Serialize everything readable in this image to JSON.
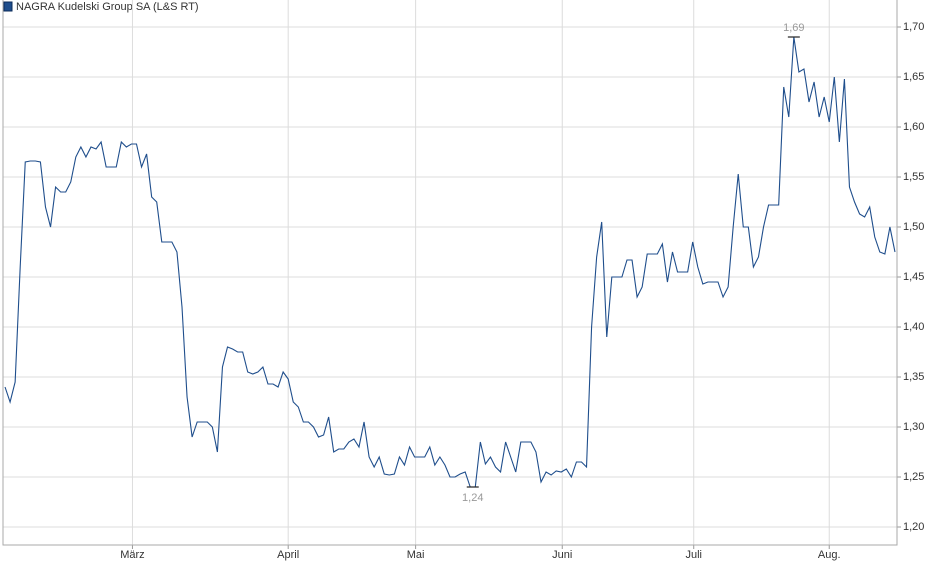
{
  "chart_data": {
    "type": "line",
    "title": "NAGRA Kudelski Group SA (L&S RT)",
    "series": [
      {
        "name": "NAGRA Kudelski Group SA (L&S RT)",
        "color": "#1f4e8c",
        "values": [
          1.34,
          1.325,
          1.345,
          1.46,
          1.565,
          1.566,
          1.566,
          1.565,
          1.52,
          1.5,
          1.54,
          1.535,
          1.535,
          1.545,
          1.57,
          1.58,
          1.57,
          1.58,
          1.578,
          1.585,
          1.56,
          1.56,
          1.56,
          1.585,
          1.58,
          1.583,
          1.583,
          1.56,
          1.573,
          1.53,
          1.525,
          1.485,
          1.485,
          1.485,
          1.475,
          1.42,
          1.33,
          1.29,
          1.305,
          1.305,
          1.305,
          1.3,
          1.275,
          1.36,
          1.38,
          1.378,
          1.375,
          1.375,
          1.355,
          1.353,
          1.355,
          1.36,
          1.343,
          1.343,
          1.34,
          1.355,
          1.348,
          1.325,
          1.32,
          1.305,
          1.305,
          1.3,
          1.29,
          1.292,
          1.31,
          1.275,
          1.278,
          1.278,
          1.285,
          1.288,
          1.28,
          1.305,
          1.27,
          1.26,
          1.27,
          1.253,
          1.252,
          1.253,
          1.27,
          1.262,
          1.28,
          1.27,
          1.27,
          1.27,
          1.28,
          1.262,
          1.27,
          1.262,
          1.25,
          1.25,
          1.253,
          1.255,
          1.24,
          1.24,
          1.285,
          1.263,
          1.27,
          1.26,
          1.255,
          1.285,
          1.27,
          1.255,
          1.285,
          1.285,
          1.285,
          1.275,
          1.245,
          1.255,
          1.252,
          1.256,
          1.255,
          1.258,
          1.25,
          1.265,
          1.265,
          1.26,
          1.4,
          1.47,
          1.505,
          1.39,
          1.45,
          1.45,
          1.45,
          1.467,
          1.467,
          1.43,
          1.44,
          1.473,
          1.473,
          1.473,
          1.483,
          1.445,
          1.475,
          1.455,
          1.455,
          1.455,
          1.485,
          1.46,
          1.443,
          1.445,
          1.445,
          1.445,
          1.43,
          1.44,
          1.5,
          1.553,
          1.5,
          1.5,
          1.46,
          1.47,
          1.5,
          1.522,
          1.522,
          1.522,
          1.64,
          1.61,
          1.69,
          1.655,
          1.658,
          1.625,
          1.645,
          1.61,
          1.63,
          1.605,
          1.65,
          1.585,
          1.648,
          1.54,
          1.525,
          1.513,
          1.51,
          1.52,
          1.49,
          1.475,
          1.473,
          1.5,
          1.475
        ]
      }
    ],
    "xlim": [
      -0.4,
      176.4
    ],
    "xticks": [
      {
        "value": 25.2,
        "label": "März"
      },
      {
        "value": 56,
        "label": "April"
      },
      {
        "value": 81.2,
        "label": "Mai"
      },
      {
        "value": 110.2,
        "label": "Juni"
      },
      {
        "value": 136.2,
        "label": "Juli"
      },
      {
        "value": 163,
        "label": "Aug."
      }
    ],
    "ylim": [
      1.182,
      1.727
    ],
    "yticks": [
      {
        "value": 1.2,
        "label": "1,20"
      },
      {
        "value": 1.25,
        "label": "1,25"
      },
      {
        "value": 1.3,
        "label": "1,30"
      },
      {
        "value": 1.35,
        "label": "1,35"
      },
      {
        "value": 1.4,
        "label": "1,40"
      },
      {
        "value": 1.45,
        "label": "1,45"
      },
      {
        "value": 1.5,
        "label": "1,50"
      },
      {
        "value": 1.55,
        "label": "1,55"
      },
      {
        "value": 1.6,
        "label": "1,60"
      },
      {
        "value": 1.65,
        "label": "1,65"
      },
      {
        "value": 1.7,
        "label": "1,70"
      }
    ],
    "annotations": [
      {
        "x": 156,
        "value": 1.69,
        "label": "1,69",
        "position": "above"
      },
      {
        "x": 92.5,
        "value": 1.24,
        "label": "1,24",
        "position": "below"
      }
    ],
    "grid": true
  }
}
